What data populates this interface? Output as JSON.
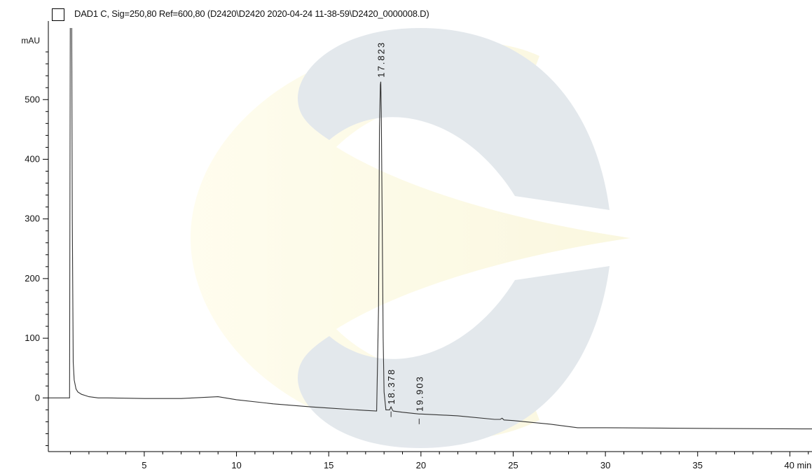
{
  "chart_data": {
    "type": "line",
    "title": "DAD1 C, Sig=250,80 Ref=600,80 (D2420\\D2420 2020-04-24 11-38-59\\D2420_0000008.D)",
    "ylabel": "mAU",
    "xlabel": "min",
    "xlim": [
      -0.2,
      41.2
    ],
    "ylim": [
      -90,
      620
    ],
    "xticks": [
      5,
      10,
      15,
      20,
      25,
      30,
      35,
      40
    ],
    "xtick_labels": [
      "5",
      "10",
      "15",
      "20",
      "25",
      "30",
      "35",
      "40 min"
    ],
    "yticks": [
      0,
      100,
      200,
      300,
      400,
      500
    ],
    "ytick_labels": [
      "0",
      "100",
      "200",
      "300",
      "400",
      "500"
    ],
    "grid": false,
    "peak_labels": [
      {
        "label": "17.823",
        "x": 17.823,
        "y": 530
      },
      {
        "label": "18.378",
        "x": 18.378,
        "y": -18
      },
      {
        "label": "19.903",
        "x": 19.903,
        "y": -30
      }
    ],
    "series": [
      {
        "color": "#333333",
        "x": [
          -0.2,
          0.95,
          1.0,
          1.05,
          1.1,
          1.15,
          1.2,
          1.3,
          1.4,
          1.6,
          1.8,
          2.0,
          2.5,
          3,
          5,
          7,
          9,
          10,
          12,
          14,
          15,
          16,
          17,
          17.6,
          17.7,
          17.75,
          17.8,
          17.823,
          17.85,
          17.9,
          17.95,
          18.0,
          18.1,
          18.2,
          18.3,
          18.378,
          18.45,
          18.5,
          19,
          19.9,
          19.903,
          19.95,
          20,
          22,
          24,
          24.3,
          24.4,
          24.5,
          25,
          27,
          28.5,
          30,
          35,
          41.2
        ],
        "y": [
          0,
          0,
          800,
          800,
          300,
          60,
          30,
          15,
          10,
          6,
          4,
          2,
          0,
          0,
          -1,
          -1,
          2,
          -3,
          -10,
          -15,
          -17,
          -19,
          -21,
          -22,
          150,
          450,
          525,
          530,
          480,
          300,
          100,
          10,
          -20,
          -20,
          -20,
          -15,
          -20,
          -22,
          -24,
          -27,
          -27,
          -27,
          -27,
          -30,
          -36,
          -36,
          -34,
          -37,
          -38,
          -44,
          -50,
          -50,
          -51,
          -52
        ]
      }
    ]
  }
}
